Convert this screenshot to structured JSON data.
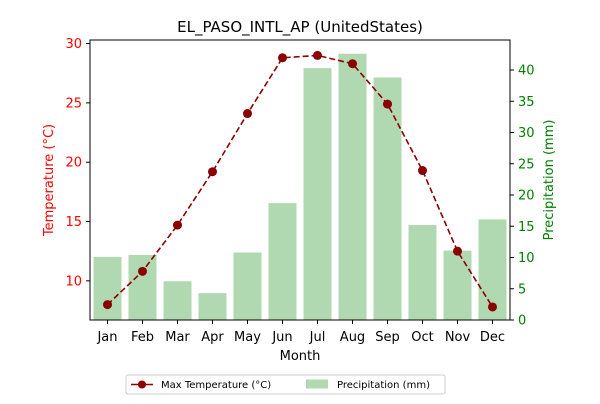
{
  "chart_data": {
    "type": "bar+line",
    "title": "EL_PASO_INTL_AP (UnitedStates)",
    "xlabel": "Month",
    "ylabel_left": "Temperature (°C)",
    "ylabel_right": "Precipitation (mm)",
    "categories": [
      "Jan",
      "Feb",
      "Mar",
      "Apr",
      "May",
      "Jun",
      "Jul",
      "Aug",
      "Sep",
      "Oct",
      "Nov",
      "Dec"
    ],
    "series": [
      {
        "name": "Max Temperature (°C)",
        "kind": "line",
        "axis": "left",
        "color": "#8b0000",
        "values": [
          8.0,
          10.8,
          14.7,
          19.2,
          24.1,
          28.8,
          29.0,
          28.3,
          24.9,
          19.3,
          12.5,
          7.8
        ]
      },
      {
        "name": "Precipitation (mm)",
        "kind": "bar",
        "axis": "right",
        "color": "#b1d9b1",
        "values": [
          10.1,
          10.4,
          6.2,
          4.3,
          10.8,
          18.7,
          40.3,
          42.6,
          38.8,
          15.2,
          11.1,
          16.1
        ]
      }
    ],
    "ylim_left": [
      6.7,
      30.3
    ],
    "ylim_right": [
      0,
      44.8
    ],
    "yticks_left": [
      10,
      15,
      20,
      25,
      30
    ],
    "yticks_right": [
      0,
      5,
      10,
      15,
      20,
      25,
      30,
      35,
      40
    ],
    "left_axis_color": "#ff0000",
    "right_axis_color": "#008000",
    "grid": false,
    "legend_position": "bottom-center"
  }
}
